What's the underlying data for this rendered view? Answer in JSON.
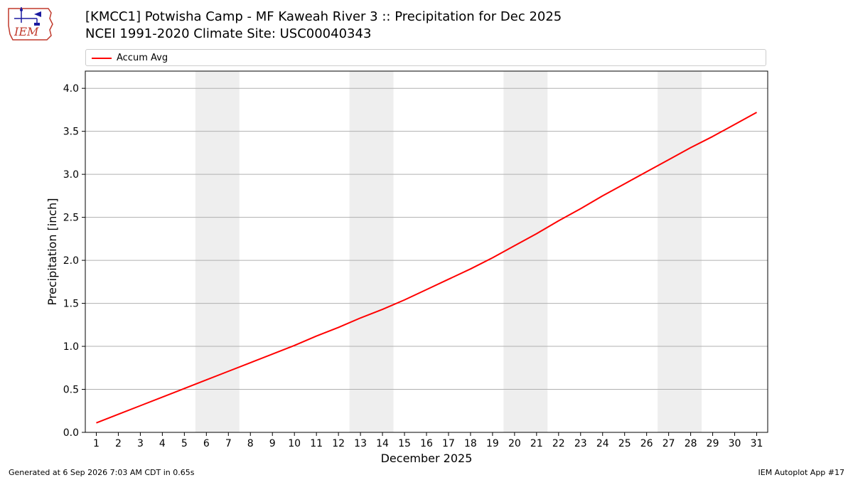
{
  "header": {
    "logo_text": "IEM",
    "title_line1": "[KMCC1] Potwisha Camp - MF Kaweah River 3 :: Precipitation for Dec 2025",
    "title_line2": "NCEI 1991-2020 Climate Site: USC00040343"
  },
  "legend": {
    "items": [
      {
        "label": "Accum Avg",
        "color": "#ff0000"
      }
    ]
  },
  "footer": {
    "left": "Generated at 6 Sep 2026 7:03 AM CDT in 0.65s",
    "right": "IEM Autoplot App #17"
  },
  "colors": {
    "series": "#ff0000",
    "weekend_band": "#eeeeee",
    "grid": "#b0b0b0"
  },
  "chart_data": {
    "type": "line",
    "xlabel": "December 2025",
    "ylabel": "Precipitation [inch]",
    "x": [
      1,
      2,
      3,
      4,
      5,
      6,
      7,
      8,
      9,
      10,
      11,
      12,
      13,
      14,
      15,
      16,
      17,
      18,
      19,
      20,
      21,
      22,
      23,
      24,
      25,
      26,
      27,
      28,
      29,
      30,
      31
    ],
    "xlim": [
      0.5,
      31.5
    ],
    "ylim": [
      0.0,
      4.2
    ],
    "yticks": [
      0.0,
      0.5,
      1.0,
      1.5,
      2.0,
      2.5,
      3.0,
      3.5,
      4.0
    ],
    "ytick_labels": [
      "0.0",
      "0.5",
      "1.0",
      "1.5",
      "2.0",
      "2.5",
      "3.0",
      "3.5",
      "4.0"
    ],
    "grid": "horizontal",
    "legend_position": "top",
    "shaded_day_ranges": [
      [
        6,
        7
      ],
      [
        13,
        14
      ],
      [
        20,
        21
      ],
      [
        27,
        28
      ]
    ],
    "series": [
      {
        "name": "Accum Avg",
        "values": [
          0.11,
          0.21,
          0.31,
          0.41,
          0.51,
          0.61,
          0.71,
          0.81,
          0.91,
          1.01,
          1.12,
          1.22,
          1.33,
          1.43,
          1.54,
          1.66,
          1.78,
          1.9,
          2.03,
          2.17,
          2.31,
          2.46,
          2.6,
          2.75,
          2.89,
          3.03,
          3.17,
          3.31,
          3.44,
          3.58,
          3.72
        ]
      }
    ]
  }
}
